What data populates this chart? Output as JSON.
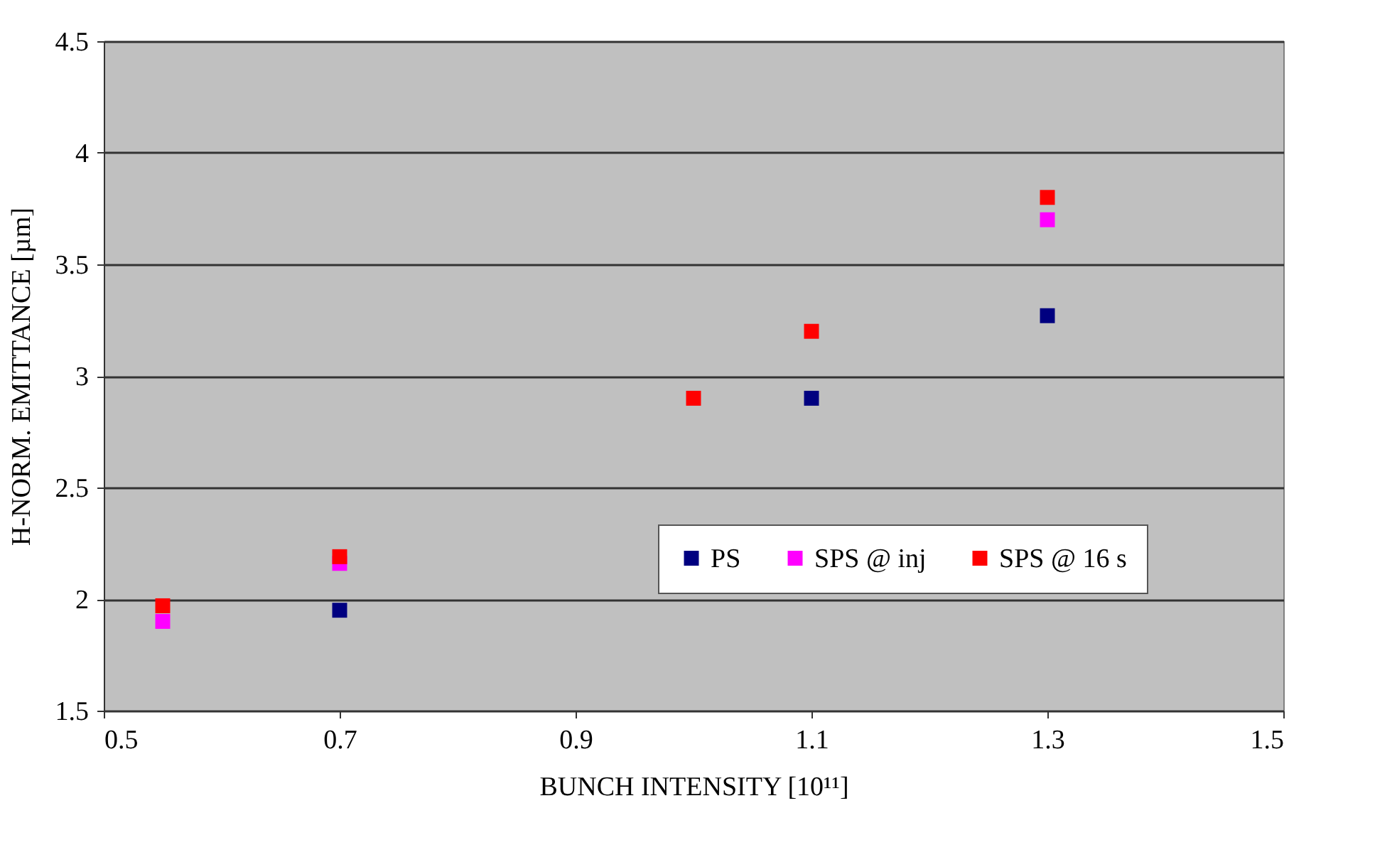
{
  "chart_data": {
    "type": "scatter",
    "xlabel": "BUNCH INTENSITY [10¹¹]",
    "ylabel": "H-NORM. EMITTANCE [µm]",
    "x": [
      0.55,
      0.7,
      1.0,
      1.1,
      1.3
    ],
    "series": [
      {
        "name": "PS",
        "color": "#000080",
        "values": [
          null,
          1.95,
          null,
          2.9,
          3.27
        ]
      },
      {
        "name": "SPS @ inj",
        "color": "#ff00ff",
        "values": [
          1.9,
          2.16,
          null,
          null,
          3.7
        ]
      },
      {
        "name": "SPS @ 16 s",
        "color": "#ff0000",
        "values": [
          1.97,
          2.19,
          2.9,
          3.2,
          3.8
        ]
      }
    ],
    "xlim": [
      0.5,
      1.5
    ],
    "xticks": [
      0.5,
      0.7,
      0.9,
      1.1,
      1.3,
      1.5
    ],
    "ylim": [
      1.5,
      4.5
    ],
    "yticks": [
      1.5,
      2,
      2.5,
      3,
      3.5,
      4,
      4.5
    ],
    "grid": "y",
    "legend": "bottom right",
    "marker": "square"
  }
}
